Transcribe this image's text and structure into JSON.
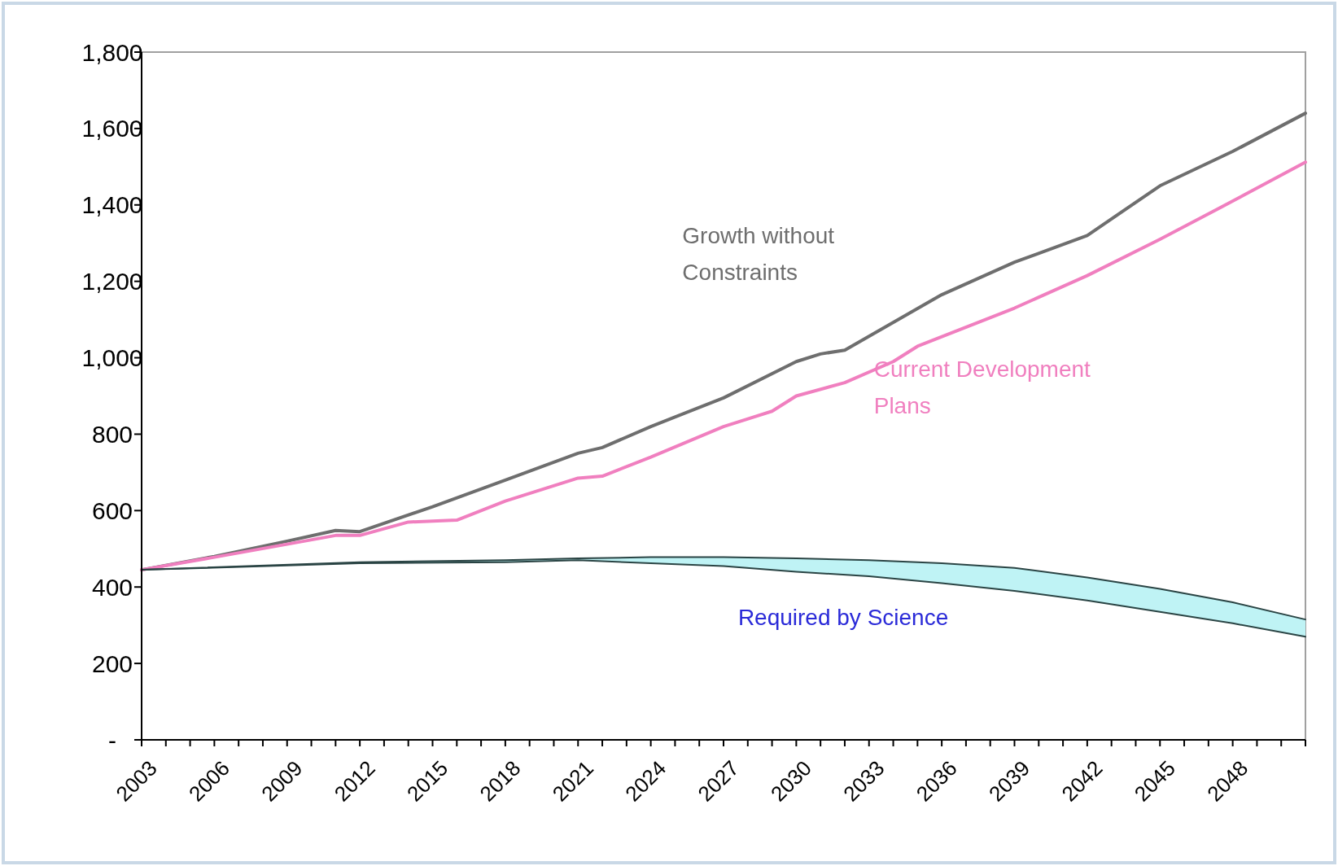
{
  "chart_data": {
    "type": "line",
    "x": [
      2003,
      2006,
      2009,
      2011,
      2012,
      2015,
      2018,
      2021,
      2022,
      2024,
      2027,
      2030,
      2031,
      2032,
      2036,
      2039,
      2042,
      2045,
      2048,
      2051
    ],
    "series": [
      {
        "name": "Growth without Constraints",
        "color": "#6e6e6e",
        "values": [
          445,
          480,
          520,
          548,
          545,
          610,
          680,
          750,
          765,
          820,
          895,
          990,
          1010,
          1020,
          1165,
          1250,
          1320,
          1450,
          1540,
          1640
        ]
      },
      {
        "name": "Current Development Plans",
        "color": "#f07fbf",
        "x": [
          2003,
          2006,
          2009,
          2011,
          2012,
          2014,
          2016,
          2018,
          2021,
          2022,
          2024,
          2027,
          2029,
          2030,
          2032,
          2034,
          2035,
          2039,
          2042,
          2045,
          2048,
          2051
        ],
        "values": [
          445,
          478,
          512,
          535,
          535,
          570,
          575,
          625,
          685,
          690,
          740,
          820,
          860,
          900,
          935,
          990,
          1030,
          1130,
          1215,
          1310,
          1410,
          1512
        ]
      },
      {
        "name": "Required by Science",
        "color": "#2a4444",
        "x": [
          2003,
          2012,
          2018,
          2021,
          2024,
          2027,
          2030,
          2033,
          2036,
          2039,
          2042,
          2045,
          2048,
          2051
        ],
        "values": [
          445,
          462,
          465,
          470,
          462,
          455,
          440,
          428,
          410,
          390,
          365,
          335,
          305,
          270
        ],
        "lower": [
          445,
          462,
          465,
          470,
          462,
          455,
          440,
          428,
          410,
          390,
          365,
          335,
          305,
          270
        ],
        "upper": [
          445,
          465,
          470,
          475,
          478,
          478,
          475,
          470,
          462,
          450,
          425,
          395,
          360,
          315
        ]
      },
      {
        "color": "#2a4444",
        "x": [
          2003,
          2012,
          2018,
          2021,
          2024,
          2027,
          2030,
          2033,
          2036,
          2039,
          2042,
          2045,
          2048,
          2051
        ],
        "values": [
          445,
          465,
          470,
          475,
          478,
          478,
          475,
          470,
          462,
          450,
          425,
          395,
          360,
          315
        ]
      }
    ],
    "xlim": [
      2003,
      2051
    ],
    "xticks": [
      2003,
      {
        "value": 2004,
        "label": null
      },
      {
        "value": 2005,
        "label": null
      },
      2006,
      {
        "value": 2007,
        "label": null
      },
      {
        "value": 2008,
        "label": null
      },
      2009,
      {
        "value": 2010,
        "label": null
      },
      {
        "value": 2011,
        "label": null
      },
      2012,
      {
        "value": 2013,
        "label": null
      },
      {
        "value": 2014,
        "label": null
      },
      2015,
      {
        "value": 2016,
        "label": null
      },
      {
        "value": 2017,
        "label": null
      },
      2018,
      {
        "value": 2019,
        "label": null
      },
      {
        "value": 2020,
        "label": null
      },
      2021,
      {
        "value": 2022,
        "label": null
      },
      {
        "value": 2023,
        "label": null
      },
      2024,
      {
        "value": 2025,
        "label": null
      },
      {
        "value": 2026,
        "label": null
      },
      2027,
      {
        "value": 2028,
        "label": null
      },
      {
        "value": 2029,
        "label": null
      },
      2030,
      {
        "value": 2031,
        "label": null
      },
      {
        "value": 2032,
        "label": null
      },
      2033,
      {
        "value": 2034,
        "label": null
      },
      {
        "value": 2035,
        "label": null
      },
      2036,
      {
        "value": 2037,
        "label": null
      },
      {
        "value": 2038,
        "label": null
      },
      2039,
      {
        "value": 2040,
        "label": null
      },
      {
        "value": 2041,
        "label": null
      },
      2042,
      {
        "value": 2043,
        "label": null
      },
      {
        "value": 2044,
        "label": null
      },
      2045,
      {
        "value": 2046,
        "label": null
      },
      {
        "value": 2047,
        "label": null
      },
      2048,
      {
        "value": 2049,
        "label": null
      },
      {
        "value": 2050,
        "label": null
      },
      {
        "value": 2051,
        "label": null
      }
    ],
    "ylim": [
      0,
      1800
    ],
    "yticks": [
      {
        "value": 0,
        "label": "-"
      },
      200,
      400,
      600,
      800,
      {
        "value": 1000,
        "label": "1,000"
      },
      {
        "value": 1200,
        "label": "1,200"
      },
      {
        "value": 1400,
        "label": "1,400"
      },
      {
        "value": 1600,
        "label": "1,600"
      },
      {
        "value": 1800,
        "label": "1,800"
      }
    ],
    "grid": false,
    "legend": false
  }
}
